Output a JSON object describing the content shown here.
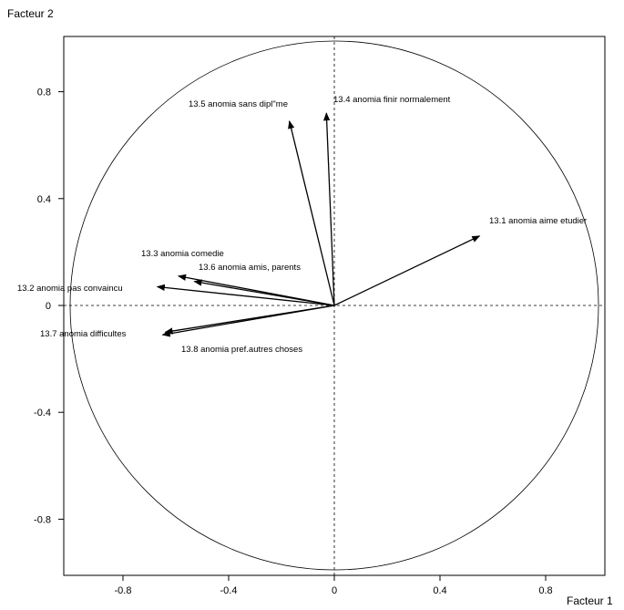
{
  "chart_data": {
    "type": "correlation-circle",
    "title": "",
    "xlabel": "Facteur 1",
    "ylabel": "Facteur 2",
    "xlim": [
      -1.0,
      1.0
    ],
    "ylim": [
      -1.0,
      1.0
    ],
    "x_ticks": [
      -0.8,
      -0.4,
      0,
      0.4,
      0.8
    ],
    "x_tick_labels": [
      "-0.8",
      "-0.4",
      "0",
      "0.4",
      "0.8"
    ],
    "y_ticks": [
      0.8,
      0.4,
      0,
      -0.4,
      -0.8
    ],
    "y_tick_labels": [
      "0.8",
      "0.4",
      "0",
      "-0.4",
      "-0.8"
    ],
    "grid": false,
    "unit_circle": true,
    "reference_lines": "dashed at x=0 and y=0",
    "vectors": [
      {
        "label": "13.1 anomia aime etudier",
        "x": 0.55,
        "y": 0.26
      },
      {
        "label": "13.2 anomia pas convaincu",
        "x": -0.67,
        "y": 0.07
      },
      {
        "label": "13.3 anomia comedie",
        "x": -0.59,
        "y": 0.11
      },
      {
        "label": "13.4 anomia finir normalement",
        "x": -0.03,
        "y": 0.72
      },
      {
        "label": "13.5 anomia sans dipl\"me",
        "x": -0.17,
        "y": 0.69
      },
      {
        "label": "13.6 anomia amis, parents",
        "x": -0.53,
        "y": 0.09
      },
      {
        "label": "13.7 anomia difficultes",
        "x": -0.65,
        "y": -0.11
      },
      {
        "label": "13.8 anomia pref.autres choses",
        "x": -0.64,
        "y": -0.1
      }
    ]
  }
}
